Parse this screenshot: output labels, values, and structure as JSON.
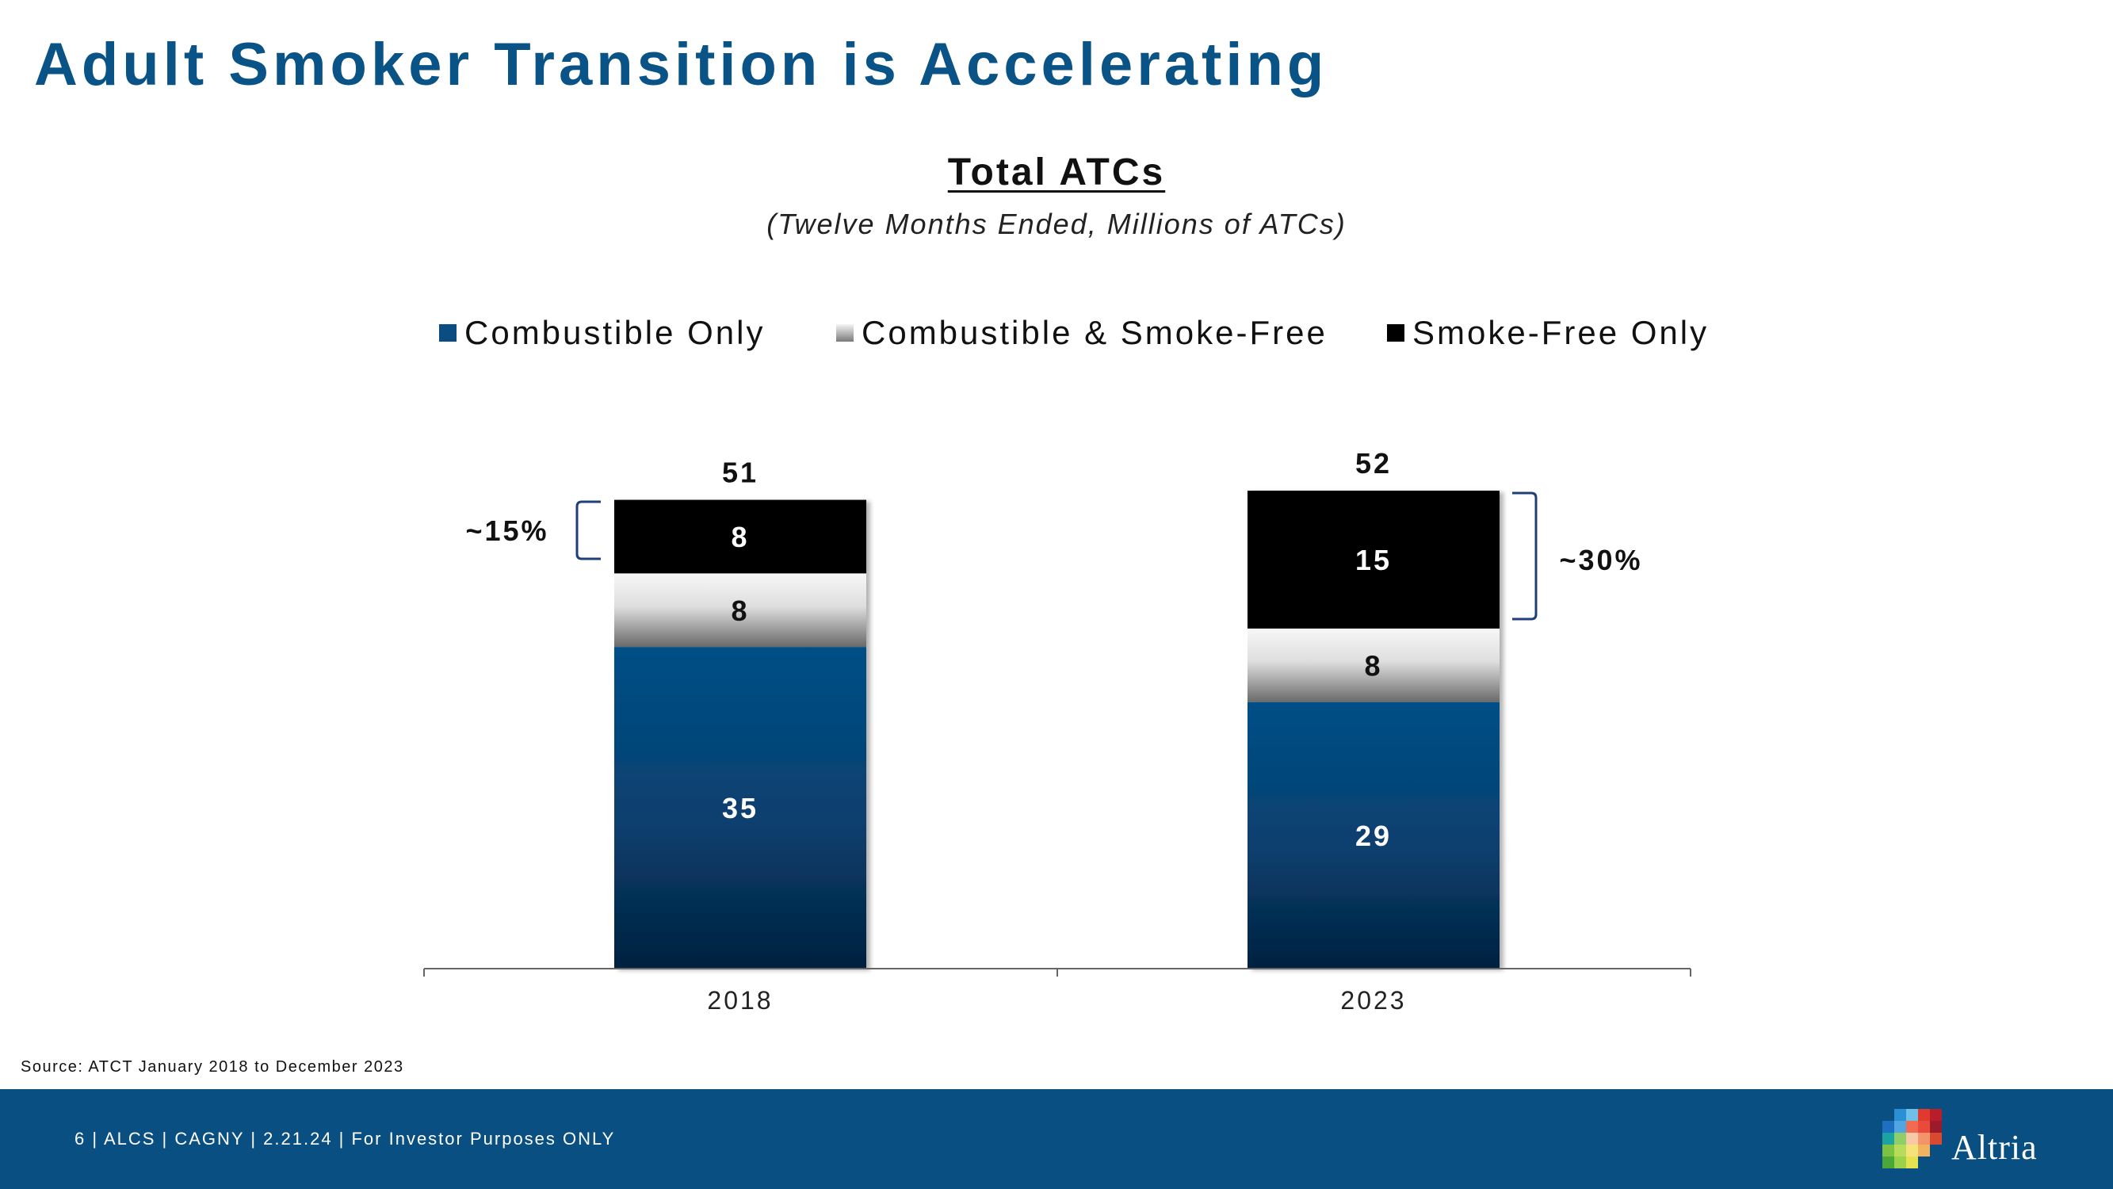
{
  "slide": {
    "title": "Adult Smoker Transition is Accelerating",
    "source": "Source: ATCT January 2018 to December 2023",
    "footer": "6 | ALCS | CAGNY | 2.21.24 | For Investor Purposes ONLY",
    "logo_text": "Altria"
  },
  "chart_data": {
    "type": "bar",
    "stacked": true,
    "title": "Total ATCs",
    "subtitle": "(Twelve Months Ended, Millions of ATCs)",
    "categories": [
      "2018",
      "2023"
    ],
    "series": [
      {
        "name": "Combustible Only",
        "values": [
          35,
          29
        ],
        "color": "#0b4d80"
      },
      {
        "name": "Combustible & Smoke-Free",
        "values": [
          8,
          8
        ],
        "color": "#b0b0b0"
      },
      {
        "name": "Smoke-Free Only",
        "values": [
          8,
          15
        ],
        "color": "#000000"
      }
    ],
    "totals": [
      "51",
      "52"
    ],
    "annotations": [
      "~15%",
      "~30%"
    ],
    "ylim": [
      0,
      52
    ],
    "legend_position": "top",
    "grid": false
  },
  "colors": {
    "title": "#0a5386",
    "footer_bg": "#0a4f82",
    "combustible": "#0b4d80",
    "smoke_free": "#000000",
    "bracket": "#1f3f7a"
  }
}
